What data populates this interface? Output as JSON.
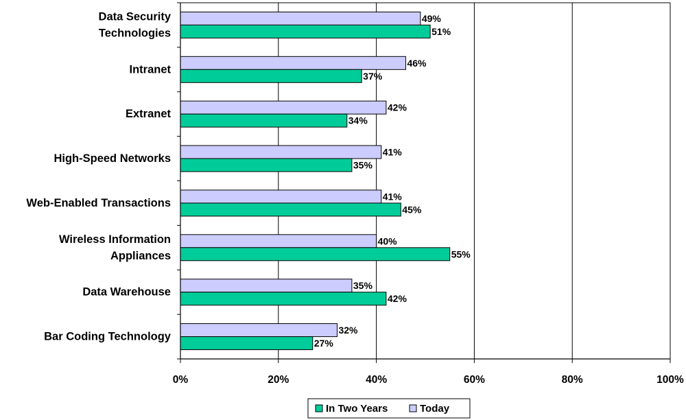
{
  "chart_data": {
    "type": "bar",
    "orientation": "horizontal",
    "categories": [
      [
        "Data Security",
        "Technologies"
      ],
      [
        "Intranet"
      ],
      [
        "Extranet"
      ],
      [
        "High-Speed Networks"
      ],
      [
        "Web-Enabled Transactions"
      ],
      [
        "Wireless Information",
        "Appliances"
      ],
      [
        "Data Warehouse"
      ],
      [
        "Bar Coding Technology"
      ]
    ],
    "series": [
      {
        "name": "Today",
        "values": [
          49,
          46,
          42,
          41,
          41,
          40,
          35,
          32
        ],
        "color": "#ccccff"
      },
      {
        "name": "In Two Years",
        "values": [
          51,
          37,
          34,
          35,
          45,
          55,
          42,
          27
        ],
        "color": "#00cc99"
      }
    ],
    "value_format": "{v}%",
    "xlim": [
      0,
      100
    ],
    "xticks": [
      0,
      20,
      40,
      60,
      80,
      100
    ],
    "xtick_labels": [
      "0%",
      "20%",
      "40%",
      "60%",
      "80%",
      "100%"
    ],
    "grid": "vertical",
    "legend": {
      "position": "bottom-center",
      "order": [
        "In Two Years",
        "Today"
      ]
    },
    "title": "",
    "xlabel": "",
    "ylabel": ""
  }
}
